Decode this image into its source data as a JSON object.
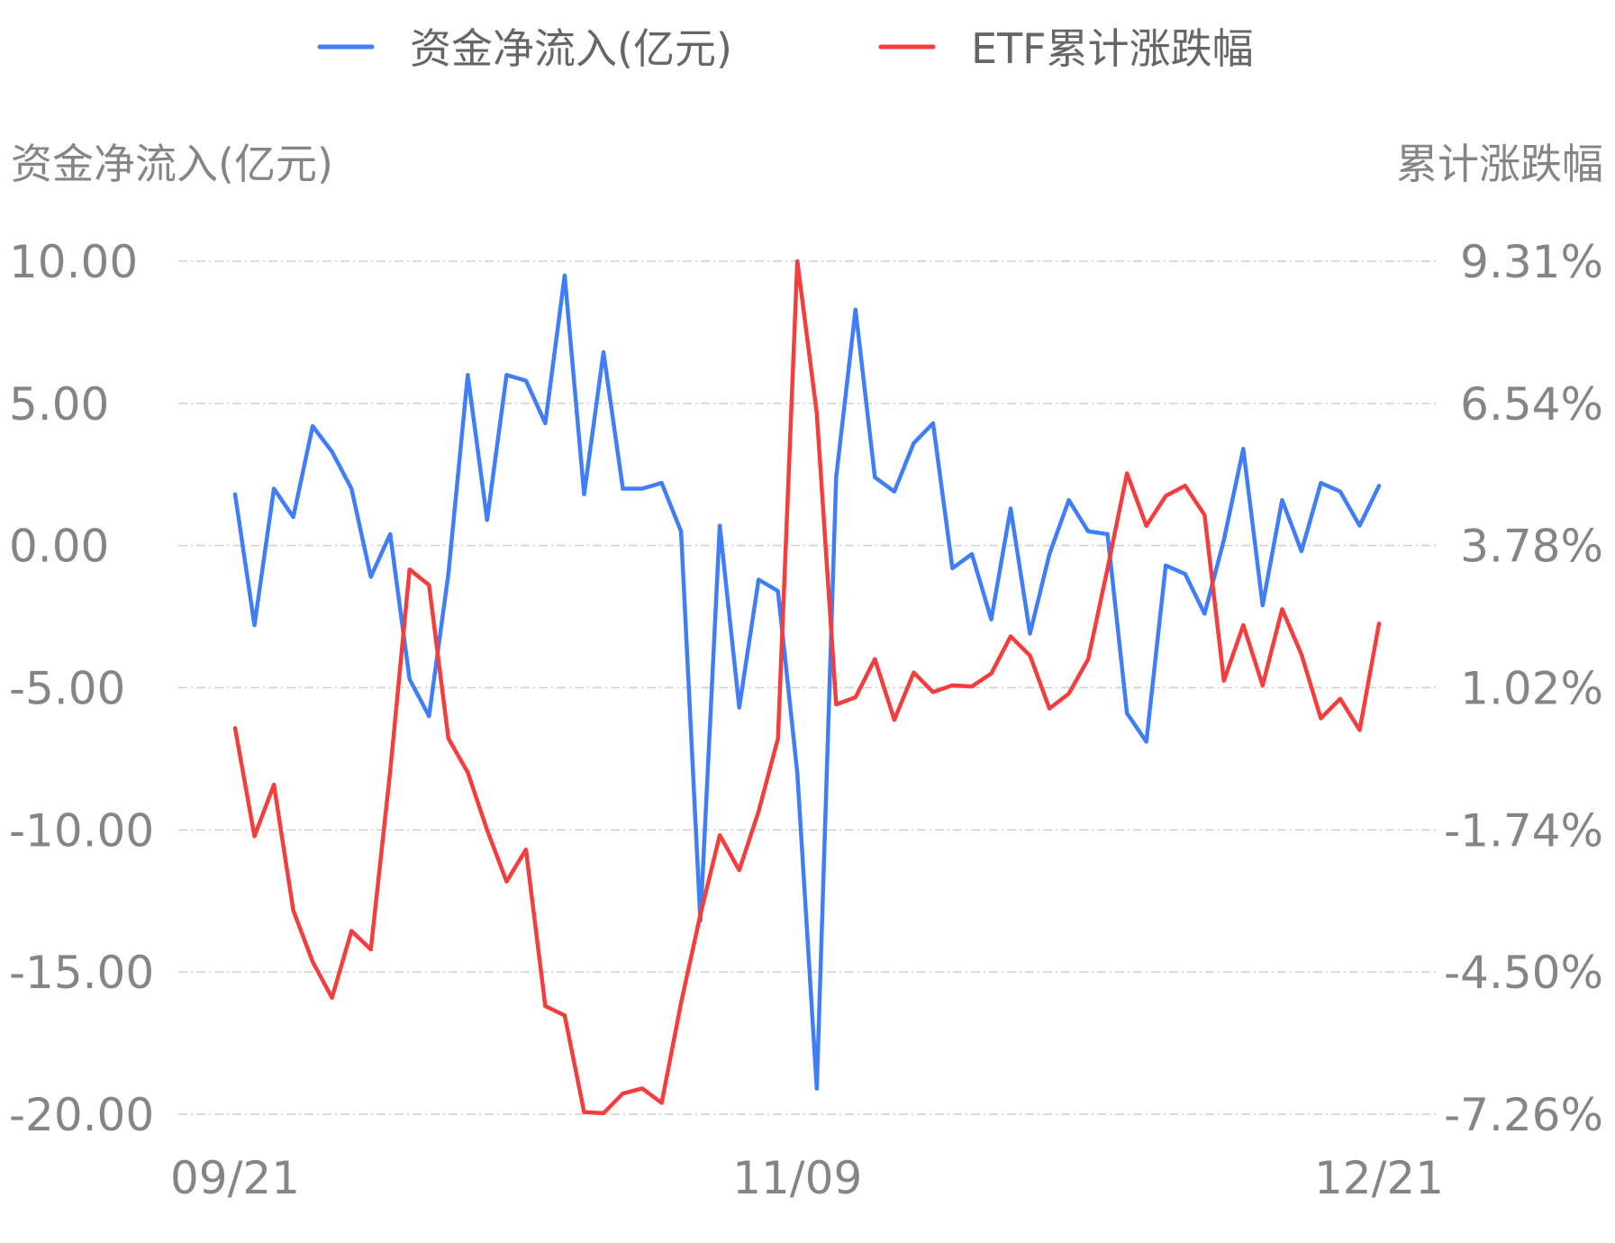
{
  "chart_data": {
    "type": "line",
    "legend": {
      "position": "top-center",
      "items": [
        {
          "label": "资金净流入(亿元)",
          "color": "#3f7ef8"
        },
        {
          "label": "ETF累计涨跌幅",
          "color": "#f53d3d"
        }
      ]
    },
    "y_left": {
      "title": "资金净流入(亿元)",
      "range": [
        -20,
        10
      ],
      "ticks": [
        "10.00",
        "5.00",
        "0.00",
        "-5.00",
        "-10.00",
        "-15.00",
        "-20.00"
      ]
    },
    "y_right": {
      "title": "累计涨跌幅",
      "range": [
        -7.26,
        9.31
      ],
      "ticks": [
        "9.31%",
        "6.54%",
        "3.78%",
        "1.02%",
        "-1.74%",
        "-4.50%",
        "-7.26%"
      ]
    },
    "x_axis": {
      "labels": [
        {
          "text": "09/21",
          "index": 0
        },
        {
          "text": "11/09",
          "index": 29
        },
        {
          "text": "12/21",
          "index": 59
        }
      ],
      "point_count": 60
    },
    "grid": true,
    "series": [
      {
        "name": "资金净流入(亿元)",
        "axis": "left",
        "color": "#3f7ef8",
        "values": [
          1.8,
          -2.8,
          2.0,
          1.0,
          4.2,
          3.3,
          2.0,
          -1.1,
          0.4,
          -4.7,
          -6.0,
          -1.0,
          6.0,
          0.9,
          6.0,
          5.8,
          4.3,
          9.5,
          1.8,
          6.8,
          2.0,
          2.0,
          2.2,
          0.5,
          -13.2,
          0.7,
          -5.7,
          -1.2,
          -1.6,
          -8.0,
          -19.1,
          2.4,
          8.3,
          2.4,
          1.9,
          3.6,
          4.3,
          -0.8,
          -0.3,
          -2.6,
          1.3,
          -3.1,
          -0.3,
          1.6,
          0.5,
          0.4,
          -5.9,
          -6.9,
          -0.7,
          -1.0,
          -2.4,
          0.2,
          3.4,
          -2.1,
          1.6,
          -0.2,
          2.2,
          1.9,
          0.7,
          2.1
        ]
      },
      {
        "name": "ETF累计涨跌幅",
        "axis": "right",
        "color": "#f53d3d",
        "values": [
          0.24,
          -1.86,
          -0.86,
          -3.3,
          -4.3,
          -5.0,
          -3.7,
          -4.06,
          -0.6,
          3.32,
          3.02,
          0.04,
          -0.62,
          -1.74,
          -2.74,
          -2.12,
          -5.16,
          -5.34,
          -7.22,
          -7.24,
          -6.86,
          -6.76,
          -7.04,
          -5.1,
          -3.38,
          -1.84,
          -2.52,
          -1.38,
          0.04,
          9.31,
          6.36,
          0.7,
          0.84,
          1.58,
          0.4,
          1.32,
          0.94,
          1.07,
          1.05,
          1.3,
          2.02,
          1.65,
          0.62,
          0.91,
          1.58,
          3.34,
          5.19,
          4.17,
          4.75,
          4.95,
          4.38,
          1.16,
          2.24,
          1.07,
          2.55,
          1.67,
          0.43,
          0.81,
          0.2,
          2.27
        ]
      }
    ]
  }
}
